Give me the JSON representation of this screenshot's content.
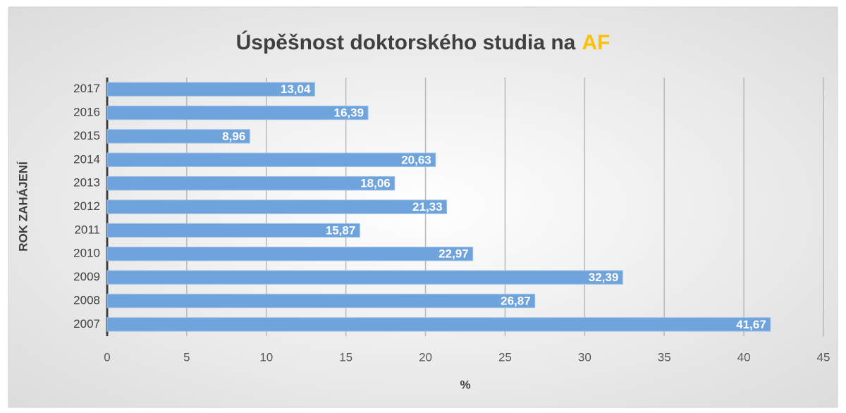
{
  "chart_data": {
    "type": "barh",
    "title_parts": [
      "Úspěšnost doktorského studia na",
      "AF"
    ],
    "title_colors": [
      "#404040",
      "#ffc000"
    ],
    "y_label": "ROK ZAHÁJENÍ",
    "x_label": "%",
    "categories": [
      "2017",
      "2016",
      "2015",
      "2014",
      "2013",
      "2012",
      "2011",
      "2010",
      "2009",
      "2008",
      "2007"
    ],
    "values": [
      13.04,
      16.39,
      8.96,
      20.63,
      18.06,
      21.33,
      15.87,
      22.97,
      32.39,
      26.87,
      41.67
    ],
    "value_labels": [
      "13,04",
      "16,39",
      "8,96",
      "20,63",
      "18,06",
      "21,33",
      "15,87",
      "22,97",
      "32,39",
      "26,87",
      "41,67"
    ],
    "color": "#6fa3db",
    "xlim": [
      0,
      45
    ],
    "xticks": [
      0,
      5,
      10,
      15,
      20,
      25,
      30,
      35,
      40,
      45
    ],
    "grid": true
  }
}
